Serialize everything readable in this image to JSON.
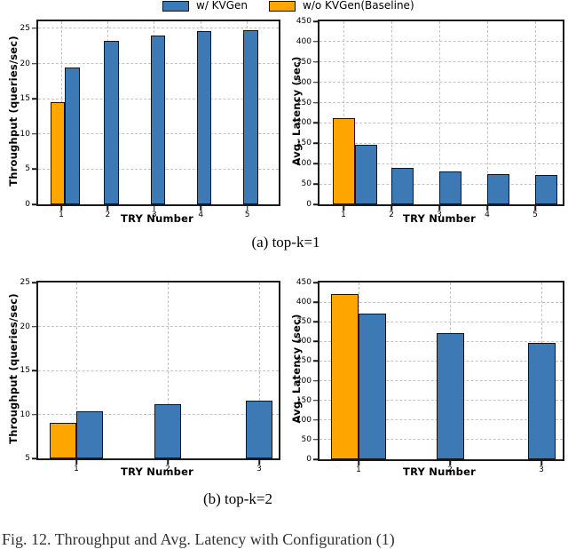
{
  "legend": {
    "items": [
      {
        "key": "kvgen",
        "label": "w/ KVGen",
        "color": "#3d7ab5"
      },
      {
        "key": "baseline",
        "label": "w/o KVGen(Baseline)",
        "color": "#ffa500"
      }
    ]
  },
  "colors": {
    "kvgen_blue": "#3d7ab5",
    "baseline_orange": "#ffa500",
    "bar_edge": "#141414",
    "axis_spine": "#1a1a1a",
    "gridline": "#c3c3c3"
  },
  "subcaptions": {
    "a": "(a) top-k=1",
    "b": "(b) top-k=2"
  },
  "figure_caption": "Fig. 12. Throughput and Avg. Latency with Configuration (1)",
  "chart_data": [
    {
      "id": "throughput-topk1",
      "type": "bar",
      "xlabel": "TRY Number",
      "ylabel": "Throughput (queries/sec)",
      "categories": [
        "1",
        "2",
        "3",
        "4",
        "5"
      ],
      "series": [
        {
          "key": "baseline",
          "name": "w/o KVGen(Baseline)",
          "color": "#ffa500",
          "values": [
            14.5,
            null,
            null,
            null,
            null
          ]
        },
        {
          "key": "kvgen",
          "name": "w/ KVGen",
          "color": "#3d7ab5",
          "values": [
            19.4,
            23.2,
            24.0,
            24.6,
            24.8
          ]
        }
      ],
      "ylim": [
        0,
        26
      ],
      "yticks": [
        0,
        5,
        10,
        15,
        20,
        25
      ],
      "grid": true,
      "legend_position": "top"
    },
    {
      "id": "latency-topk1",
      "type": "bar",
      "xlabel": "TRY Number",
      "ylabel": "Avg. Latency (sec)",
      "categories": [
        "1",
        "2",
        "3",
        "4",
        "5"
      ],
      "series": [
        {
          "key": "baseline",
          "name": "w/o KVGen(Baseline)",
          "color": "#ffa500",
          "values": [
            213,
            null,
            null,
            null,
            null
          ]
        },
        {
          "key": "kvgen",
          "name": "w/ KVGen",
          "color": "#3d7ab5",
          "values": [
            146,
            89,
            80,
            75,
            73
          ]
        }
      ],
      "ylim": [
        0,
        450
      ],
      "yticks": [
        0,
        50,
        100,
        150,
        200,
        250,
        300,
        350,
        400,
        450
      ],
      "grid": true,
      "legend_position": "top"
    },
    {
      "id": "throughput-topk2",
      "type": "bar",
      "xlabel": "TRY Number",
      "ylabel": "Throughput (queries/sec)",
      "categories": [
        "1",
        "2",
        "3"
      ],
      "series": [
        {
          "key": "baseline",
          "name": "w/o KVGen(Baseline)",
          "color": "#ffa500",
          "values": [
            9.0,
            null,
            null
          ]
        },
        {
          "key": "kvgen",
          "name": "w/ KVGen",
          "color": "#3d7ab5",
          "values": [
            10.4,
            11.2,
            11.6
          ]
        }
      ],
      "ylim": [
        5,
        25
      ],
      "yticks": [
        5,
        10,
        15,
        20,
        25
      ],
      "grid": true,
      "legend_position": "none"
    },
    {
      "id": "latency-topk2",
      "type": "bar",
      "xlabel": "TRY Number",
      "ylabel": "Avg. Latency (sec)",
      "categories": [
        "1",
        "2",
        "3"
      ],
      "series": [
        {
          "key": "baseline",
          "name": "w/o KVGen(Baseline)",
          "color": "#ffa500",
          "values": [
            420,
            null,
            null
          ]
        },
        {
          "key": "kvgen",
          "name": "w/ KVGen",
          "color": "#3d7ab5",
          "values": [
            370,
            322,
            297
          ]
        }
      ],
      "ylim": [
        0,
        450
      ],
      "yticks": [
        0,
        50,
        100,
        150,
        200,
        250,
        300,
        350,
        400,
        450
      ],
      "grid": true,
      "legend_position": "none"
    }
  ]
}
